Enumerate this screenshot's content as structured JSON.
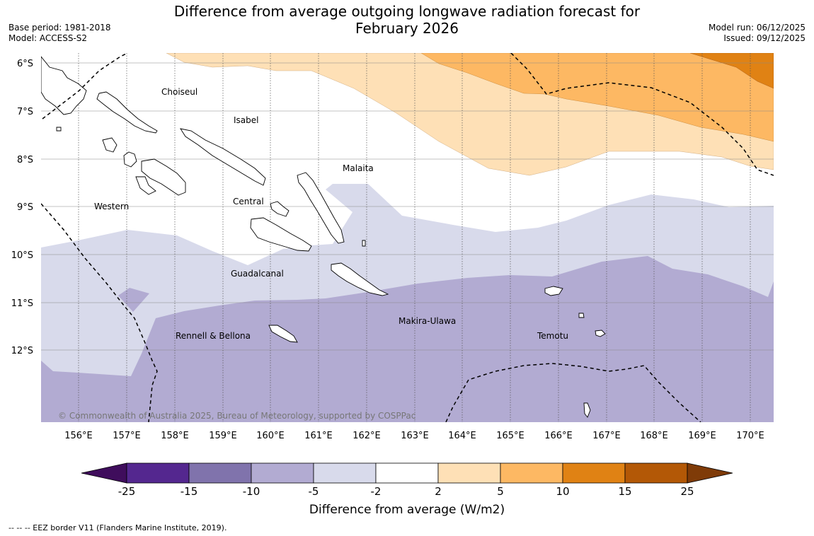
{
  "title_line1": "Difference from average outgoing longwave radiation forecast for",
  "title_line2": "February 2026",
  "base_period": "Base period: 1981-2018",
  "model": "Model: ACCESS-S2",
  "model_run": "Model run: 06/12/2025",
  "issued": "Issued: 09/12/2025",
  "copyright": "© Commonwealth of Australia 2025, Bureau of Meteorology, supported by COSPPac",
  "lat_labels": [
    "6°S",
    "7°S",
    "8°S",
    "9°S",
    "10°S",
    "11°S",
    "12°S"
  ],
  "lon_labels": [
    "156°E",
    "157°E",
    "158°E",
    "159°E",
    "160°E",
    "161°E",
    "162°E",
    "163°E",
    "164°E",
    "165°E",
    "166°E",
    "167°E",
    "168°E",
    "169°E",
    "170°E"
  ],
  "regions": {
    "choiseul": "Choiseul",
    "isabel": "Isabel",
    "malaita": "Malaita",
    "western": "Western",
    "central": "Central",
    "guadalcanal": "Guadalcanal",
    "makira_ulawa": "Makira-Ulawa",
    "rennell_bellona": "Rennell & Bellona",
    "temotu": "Temotu"
  },
  "colorbar": {
    "title": "Difference from average (W/m2)",
    "ticks": [
      "-25",
      "-15",
      "-10",
      "-5",
      "-2",
      "2",
      "5",
      "10",
      "15",
      "25"
    ],
    "colors": [
      "#3f0d5c",
      "#54278f",
      "#8073ac",
      "#b2abd2",
      "#d8daeb",
      "#ffffff",
      "#fee0b6",
      "#fdb863",
      "#e08214",
      "#b35806",
      "#7f3b08"
    ]
  },
  "legend_note": "--  --  -- EEZ border V11 (Flanders Marine Institute, 2019)."
}
